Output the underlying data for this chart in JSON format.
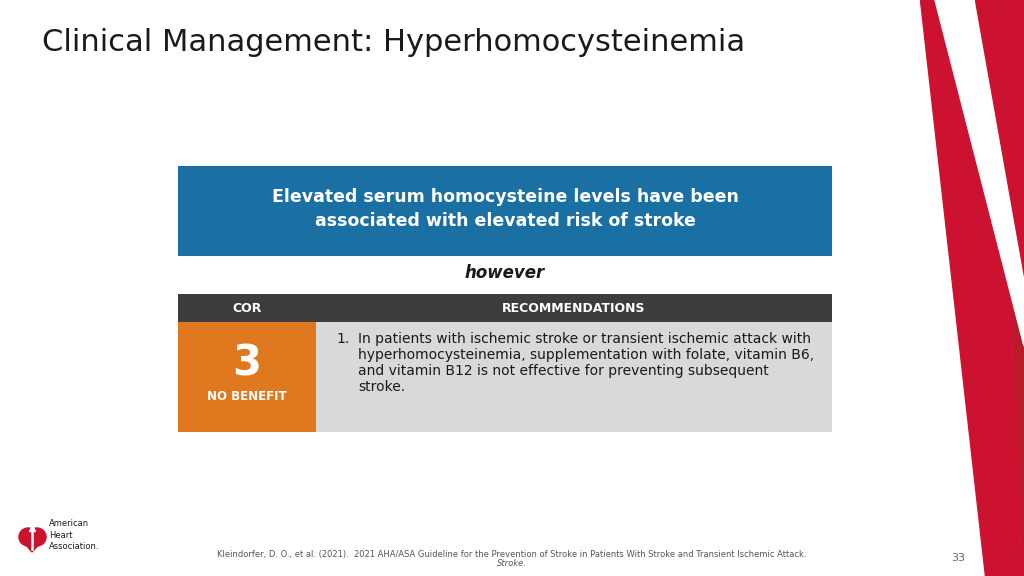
{
  "title": "Clinical Management: Hyperhomocysteinemia",
  "title_fontsize": 22,
  "blue_box_text_line1": "Elevated serum homocysteine levels have been",
  "blue_box_text_line2": "associated with elevated risk of stroke",
  "blue_box_color": "#1a6fa3",
  "however_text": "however",
  "header_bg_color": "#3d3d3d",
  "header_cor_text": "COR",
  "header_rec_text": "RECOMMENDATIONS",
  "orange_color": "#e07820",
  "cor_number": "3",
  "cor_label": "NO BENEFIT",
  "row_bg_color": "#d9d9d9",
  "rec_line1": "In patients with ischemic stroke or transient ischemic attack with",
  "rec_line2": "hyperhomocysteinemia, supplementation with folate, vitamin B6,",
  "rec_line3": "and vitamin B12 is not effective for preventing subsequent",
  "rec_line4": "stroke.",
  "citation_line1": "Kleindorfer, D. O., et al. (2021).  2021 AHA/ASA Guideline for the Prevention of Stroke in Patients With Stroke and Transient Ischemic Attack.",
  "citation_line2": "Stroke.",
  "page_number": "33",
  "bg_color": "#ffffff",
  "red_dark": "#b71c2a",
  "red_bright": "#cc1230",
  "light_gray": "#e8e8e8"
}
